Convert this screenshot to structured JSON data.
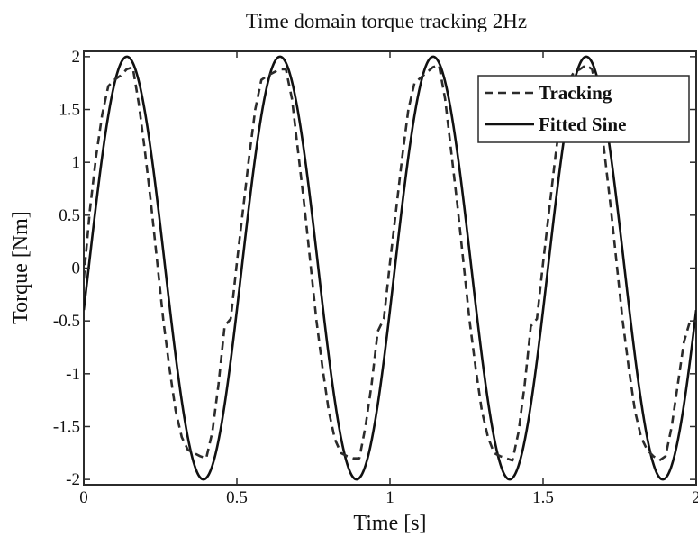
{
  "chart_data": {
    "type": "line",
    "title": "Time domain torque tracking 2Hz",
    "xlabel": "Time [s]",
    "ylabel": "Torque [Nm]",
    "xlim": [
      0,
      2
    ],
    "ylim": [
      -2.05,
      2.05
    ],
    "x_ticks": [
      0,
      0.5,
      1,
      1.5,
      2
    ],
    "x_tick_labels": [
      "0",
      "0.5",
      "1",
      "1.5",
      "2"
    ],
    "y_ticks": [
      2,
      1.5,
      1,
      0.5,
      0,
      -0.5,
      -1,
      -1.5,
      -2
    ],
    "y_tick_labels": [
      "2",
      "1.5",
      "1",
      "0.5",
      "0",
      "-0.5",
      "-1",
      "-1.5",
      "-2"
    ],
    "grid": false,
    "legend_position": "top-right",
    "series": [
      {
        "name": "Tracking",
        "style": "dashed",
        "color": "#2b2b2b",
        "x": [
          0,
          0.02,
          0.04,
          0.06,
          0.08,
          0.1,
          0.12,
          0.14,
          0.16,
          0.18,
          0.2,
          0.22,
          0.24,
          0.26,
          0.28,
          0.3,
          0.32,
          0.34,
          0.36,
          0.38,
          0.4,
          0.42,
          0.44,
          0.46,
          0.48,
          0.5,
          0.52,
          0.54,
          0.56,
          0.58,
          0.6,
          0.62,
          0.64,
          0.66,
          0.68,
          0.7,
          0.72,
          0.74,
          0.76,
          0.78,
          0.8,
          0.82,
          0.84,
          0.86,
          0.88,
          0.9,
          0.92,
          0.94,
          0.96,
          0.98,
          1.0,
          1.02,
          1.04,
          1.06,
          1.08,
          1.1,
          1.12,
          1.14,
          1.16,
          1.18,
          1.2,
          1.22,
          1.24,
          1.26,
          1.28,
          1.3,
          1.32,
          1.34,
          1.36,
          1.38,
          1.4,
          1.42,
          1.44,
          1.46,
          1.48,
          1.5,
          1.52,
          1.54,
          1.56,
          1.58,
          1.6,
          1.62,
          1.64,
          1.66,
          1.68,
          1.7,
          1.72,
          1.74,
          1.76,
          1.78,
          1.8,
          1.82,
          1.84,
          1.86,
          1.88,
          1.9,
          1.92,
          1.94,
          1.96,
          1.98,
          2.0
        ],
        "y": [
          -0.1,
          0.55,
          1.05,
          1.45,
          1.72,
          1.78,
          1.82,
          1.88,
          1.9,
          1.55,
          1.1,
          0.6,
          0.05,
          -0.5,
          -0.95,
          -1.35,
          -1.6,
          -1.72,
          -1.75,
          -1.78,
          -1.8,
          -1.55,
          -1.1,
          -0.55,
          -0.48,
          0.05,
          0.55,
          1.05,
          1.5,
          1.78,
          1.82,
          1.85,
          1.88,
          1.88,
          1.6,
          1.1,
          0.6,
          0.05,
          -0.5,
          -0.95,
          -1.35,
          -1.62,
          -1.75,
          -1.78,
          -1.8,
          -1.8,
          -1.5,
          -1.1,
          -0.6,
          -0.48,
          0.05,
          0.55,
          1.05,
          1.5,
          1.75,
          1.8,
          1.85,
          1.9,
          1.92,
          1.6,
          1.1,
          0.6,
          0.05,
          -0.5,
          -0.95,
          -1.35,
          -1.6,
          -1.75,
          -1.78,
          -1.8,
          -1.82,
          -1.55,
          -1.1,
          -0.55,
          -0.48,
          0.05,
          0.55,
          1.05,
          1.5,
          1.75,
          1.85,
          1.88,
          1.92,
          1.88,
          1.6,
          1.1,
          0.6,
          0.05,
          -0.5,
          -0.95,
          -1.35,
          -1.6,
          -1.72,
          -1.78,
          -1.82,
          -1.78,
          -1.5,
          -1.1,
          -0.7,
          -0.5,
          -0.5
        ]
      },
      {
        "name": "Fitted Sine",
        "style": "solid",
        "color": "#111111",
        "function": {
          "amplitude": 2.0,
          "frequency_hz": 2,
          "phase_rad": -0.2
        }
      }
    ]
  }
}
